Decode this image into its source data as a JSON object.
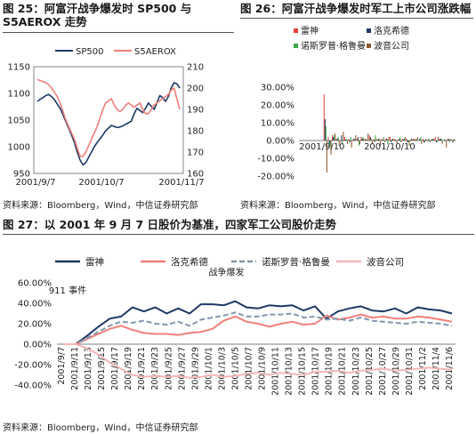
{
  "fig25": {
    "title": "图 25：阿富汗战争爆发时 SP500 与 S5AEROX 走势",
    "source": "资料来源：Bloomberg，Wind，中信证券研究部"
  },
  "fig26": {
    "title": "图 26：阿富汗战争爆发时军工上市公司涨跌幅",
    "source": "资料来源：Bloomberg，Wind，中信证券研究部"
  },
  "fig27": {
    "title": "图 27：以 2001 年 9 月 7 日股价为基准，四家军工公司股价走势",
    "source": "资料来源：Bloomberg，Wind，中信证券研究部"
  },
  "colors": {
    "navy": "#1f3864",
    "salmon": "#f07f7a",
    "grayblue": "#8497b0",
    "pink": "#f4b6b6",
    "red": "#e8403a",
    "brown": "#8c5a2b",
    "green": "#3aa84a"
  },
  "chart_data": [
    {
      "id": "fig25",
      "type": "line",
      "x_ticks": [
        "2001/9/7",
        "2001/10/7",
        "2001/11/7"
      ],
      "y_left": {
        "ticks": [
          950,
          1000,
          1050,
          1100,
          1150
        ],
        "range": [
          950,
          1150
        ]
      },
      "y_right": {
        "ticks": [
          160,
          170,
          180,
          190,
          200,
          210
        ],
        "range": [
          160,
          210
        ]
      },
      "legend_position": "top",
      "series": [
        {
          "name": "SP500",
          "axis": "left",
          "color": "#1f3864",
          "values": [
            1085,
            1089,
            1092,
            1096,
            1098,
            1094,
            1088,
            1080,
            1072,
            1060,
            1047,
            1035,
            1022,
            1008,
            990,
            975,
            966,
            970,
            980,
            990,
            1000,
            1008,
            1015,
            1022,
            1030,
            1035,
            1040,
            1038,
            1036,
            1037,
            1039,
            1042,
            1045,
            1048,
            1062,
            1072,
            1068,
            1064,
            1072,
            1082,
            1076,
            1070,
            1082,
            1096,
            1092,
            1085,
            1094,
            1110,
            1120,
            1118,
            1110
          ]
        },
        {
          "name": "S5AEROX",
          "axis": "right",
          "color": "#f07f7a",
          "values": [
            204,
            203.5,
            203,
            202.5,
            201.5,
            200,
            198,
            196,
            193,
            189,
            185,
            182,
            179,
            176,
            172,
            168,
            168,
            170,
            173,
            176,
            179,
            182,
            186,
            190,
            193,
            194,
            195,
            192,
            190,
            189,
            190,
            192,
            193,
            192,
            191,
            192,
            193,
            190,
            188,
            188,
            190,
            192,
            193,
            194,
            195,
            196,
            197,
            199,
            200,
            195,
            190
          ]
        }
      ]
    },
    {
      "id": "fig26",
      "type": "bar",
      "x_ticks": [
        "2001/9/10",
        "2001/10/10"
      ],
      "y": {
        "ticks": [
          "30.00%",
          "20.00%",
          "10.00%",
          "0.00%",
          "-10.00%",
          "-20.00%"
        ],
        "range": [
          -20,
          30
        ]
      },
      "legend_position": "top",
      "series": [
        {
          "name": "雷神",
          "color": "#e8403a",
          "values": [
            0,
            0,
            0,
            0,
            0,
            0,
            26,
            2,
            3,
            1,
            -1,
            2,
            1,
            0.5,
            1,
            2,
            1,
            3,
            1,
            0.5,
            1,
            1,
            2,
            1,
            0.5,
            1,
            1,
            0.5,
            1,
            0,
            1,
            0.5,
            0.5,
            2,
            1,
            0,
            1,
            0.5
          ]
        },
        {
          "name": "洛克希德",
          "color": "#1f3864",
          "values": [
            0,
            0,
            0,
            0,
            0,
            0,
            12,
            -2,
            2,
            1,
            3,
            0.5,
            -1,
            1,
            2,
            1,
            0.5,
            2,
            -1,
            1,
            0.5,
            1,
            -1,
            0.5,
            1,
            0.5,
            -1,
            1,
            0.5,
            1,
            -1,
            0.5,
            1,
            -1,
            1,
            0.5,
            1,
            -1
          ]
        },
        {
          "name": "诺斯罗普·格鲁曼",
          "color": "#3aa84a",
          "values": [
            0,
            0,
            0,
            0,
            0,
            0,
            8,
            -3,
            3,
            2,
            -2,
            1,
            2,
            1,
            -3,
            2,
            0.5,
            1,
            3,
            1,
            2,
            -2,
            1,
            0.5,
            2,
            1,
            -1,
            0.5,
            1,
            2,
            -1,
            1,
            1,
            -1,
            1,
            0.5,
            -1,
            1
          ]
        },
        {
          "name": "波音公司",
          "color": "#8c5a2b",
          "values": [
            0,
            0,
            0,
            0,
            0,
            0,
            -18,
            -8,
            4,
            -3,
            5,
            -2,
            -4,
            3,
            -2,
            1,
            4,
            -2,
            1,
            -3,
            -1,
            2,
            1,
            -2,
            -1,
            2,
            -3,
            1,
            2,
            -2,
            1,
            -1,
            1,
            2,
            -2,
            -4,
            1,
            0.5
          ]
        }
      ]
    },
    {
      "id": "fig27",
      "type": "line",
      "x_ticks": [
        "2001/9/7",
        "2001/9/11",
        "2001/9/13",
        "2001/9/15",
        "2001/9/17",
        "2001/9/19",
        "2001/9/21",
        "2001/9/23",
        "2001/9/25",
        "2001/9/27",
        "2001/9/29",
        "2001/10/1",
        "2001/10/3",
        "2001/10/5",
        "2001/10/7",
        "2001/10/9",
        "2001/10/11",
        "2001/10/13",
        "2001/10/15",
        "2001/10/17",
        "2001/10/19",
        "2001/10/21",
        "2001/10/23",
        "2001/10/25",
        "2001/10/27",
        "2001/10/29",
        "2001/10/31",
        "2001/11/2",
        "2001/11/4",
        "2001/11/6"
      ],
      "y": {
        "ticks": [
          "60.00%",
          "40.00%",
          "20.00%",
          "0.00%",
          "-20.00%",
          "-40.00%"
        ],
        "range": [
          -40,
          60
        ]
      },
      "legend_position": "top",
      "annotations": [
        {
          "text": "911 事件",
          "at_index": 1,
          "value": 52
        },
        {
          "text": "战争爆发",
          "at_index": 15,
          "value": 70
        }
      ],
      "series": [
        {
          "name": "雷神",
          "color": "#1f3864",
          "style": "solid",
          "values": [
            0,
            0,
            8,
            17,
            25,
            27,
            36,
            32,
            36,
            30,
            35,
            30,
            39,
            39,
            38,
            42,
            36,
            35,
            38,
            37,
            38,
            33,
            37,
            25,
            32,
            35,
            37,
            33,
            32,
            35,
            30,
            36,
            34,
            33,
            30
          ]
        },
        {
          "name": "洛克希德",
          "color": "#f07f7a",
          "style": "solid",
          "values": [
            0,
            0,
            5,
            10,
            15,
            18,
            14,
            11,
            10,
            10,
            9,
            11,
            12,
            15,
            23,
            27,
            22,
            20,
            17,
            20,
            22,
            19,
            20,
            28,
            24,
            26,
            29,
            26,
            27,
            25,
            25,
            27,
            26,
            24,
            22
          ]
        },
        {
          "name": "诺斯罗普·格鲁曼",
          "color": "#8497b0",
          "style": "dashed",
          "values": [
            0,
            0,
            6,
            12,
            18,
            22,
            21,
            23,
            20,
            19,
            22,
            18,
            24,
            26,
            28,
            31,
            27,
            27,
            29,
            29,
            30,
            26,
            27,
            24,
            25,
            23,
            26,
            23,
            22,
            21,
            20,
            22,
            21,
            20,
            18
          ]
        },
        {
          "name": "波音公司",
          "color": "#f4b6b6",
          "style": "solid",
          "values": [
            0,
            0,
            -4,
            -10,
            -18,
            -24,
            -30,
            -32,
            -31,
            -32,
            -31,
            -33,
            -32,
            -30,
            -32,
            -31,
            -29,
            -28,
            -30,
            -28,
            -29,
            -30,
            -27,
            -27,
            -26,
            -28,
            -26,
            -25,
            -24,
            -26,
            -25,
            -24,
            -23,
            -24,
            -25
          ]
        }
      ]
    }
  ]
}
